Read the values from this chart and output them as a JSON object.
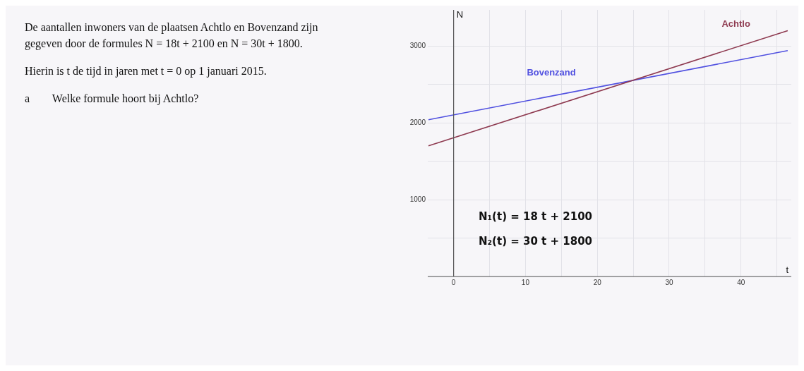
{
  "chart_data": {
    "type": "line",
    "title": "De aantallen inwoners van de plaatsen Achtlo en Bovenzand zijn gegeven door de formules N = 18t + 2100  en N = 30t + 1800.",
    "subtitle": "Hierin is t de tijd in jaren met t = 0 op 1 januari 2015.",
    "annotations": [
      "a        Welke formule hoort bij Achtlo?",
      "N₁(t) = 18 t + 2100",
      "N₂(t) = 30 t + 1800"
    ],
    "xlabel": "t",
    "ylabel": "N",
    "x": [
      -3.5,
      46.5
    ],
    "series": [
      {
        "name": "Achtlo",
        "color": "#8e3a50",
        "values": [
          1700,
          3200
        ]
      },
      {
        "name": "Bovenzand",
        "color": "#5050e0",
        "values": [
          2040,
          2940
        ]
      }
    ],
    "xlim": [
      -3.6,
      47
    ],
    "ylim": [
      0,
      3470
    ],
    "xticks": [
      0,
      {
        "value": 5,
        "label": null
      },
      10,
      {
        "value": 15,
        "label": null
      },
      20,
      {
        "value": 25,
        "label": null
      },
      30,
      {
        "value": 35,
        "label": null
      },
      40,
      {
        "value": 45,
        "label": null
      }
    ],
    "yticks": [
      {
        "value": 0,
        "label": null
      },
      {
        "value": 500,
        "label": null
      },
      1000,
      {
        "value": 1500,
        "label": null
      },
      2000,
      {
        "value": 2500,
        "label": null
      },
      3000
    ],
    "grid": true,
    "legend": false,
    "marker": "none",
    "line_style": "solid"
  }
}
